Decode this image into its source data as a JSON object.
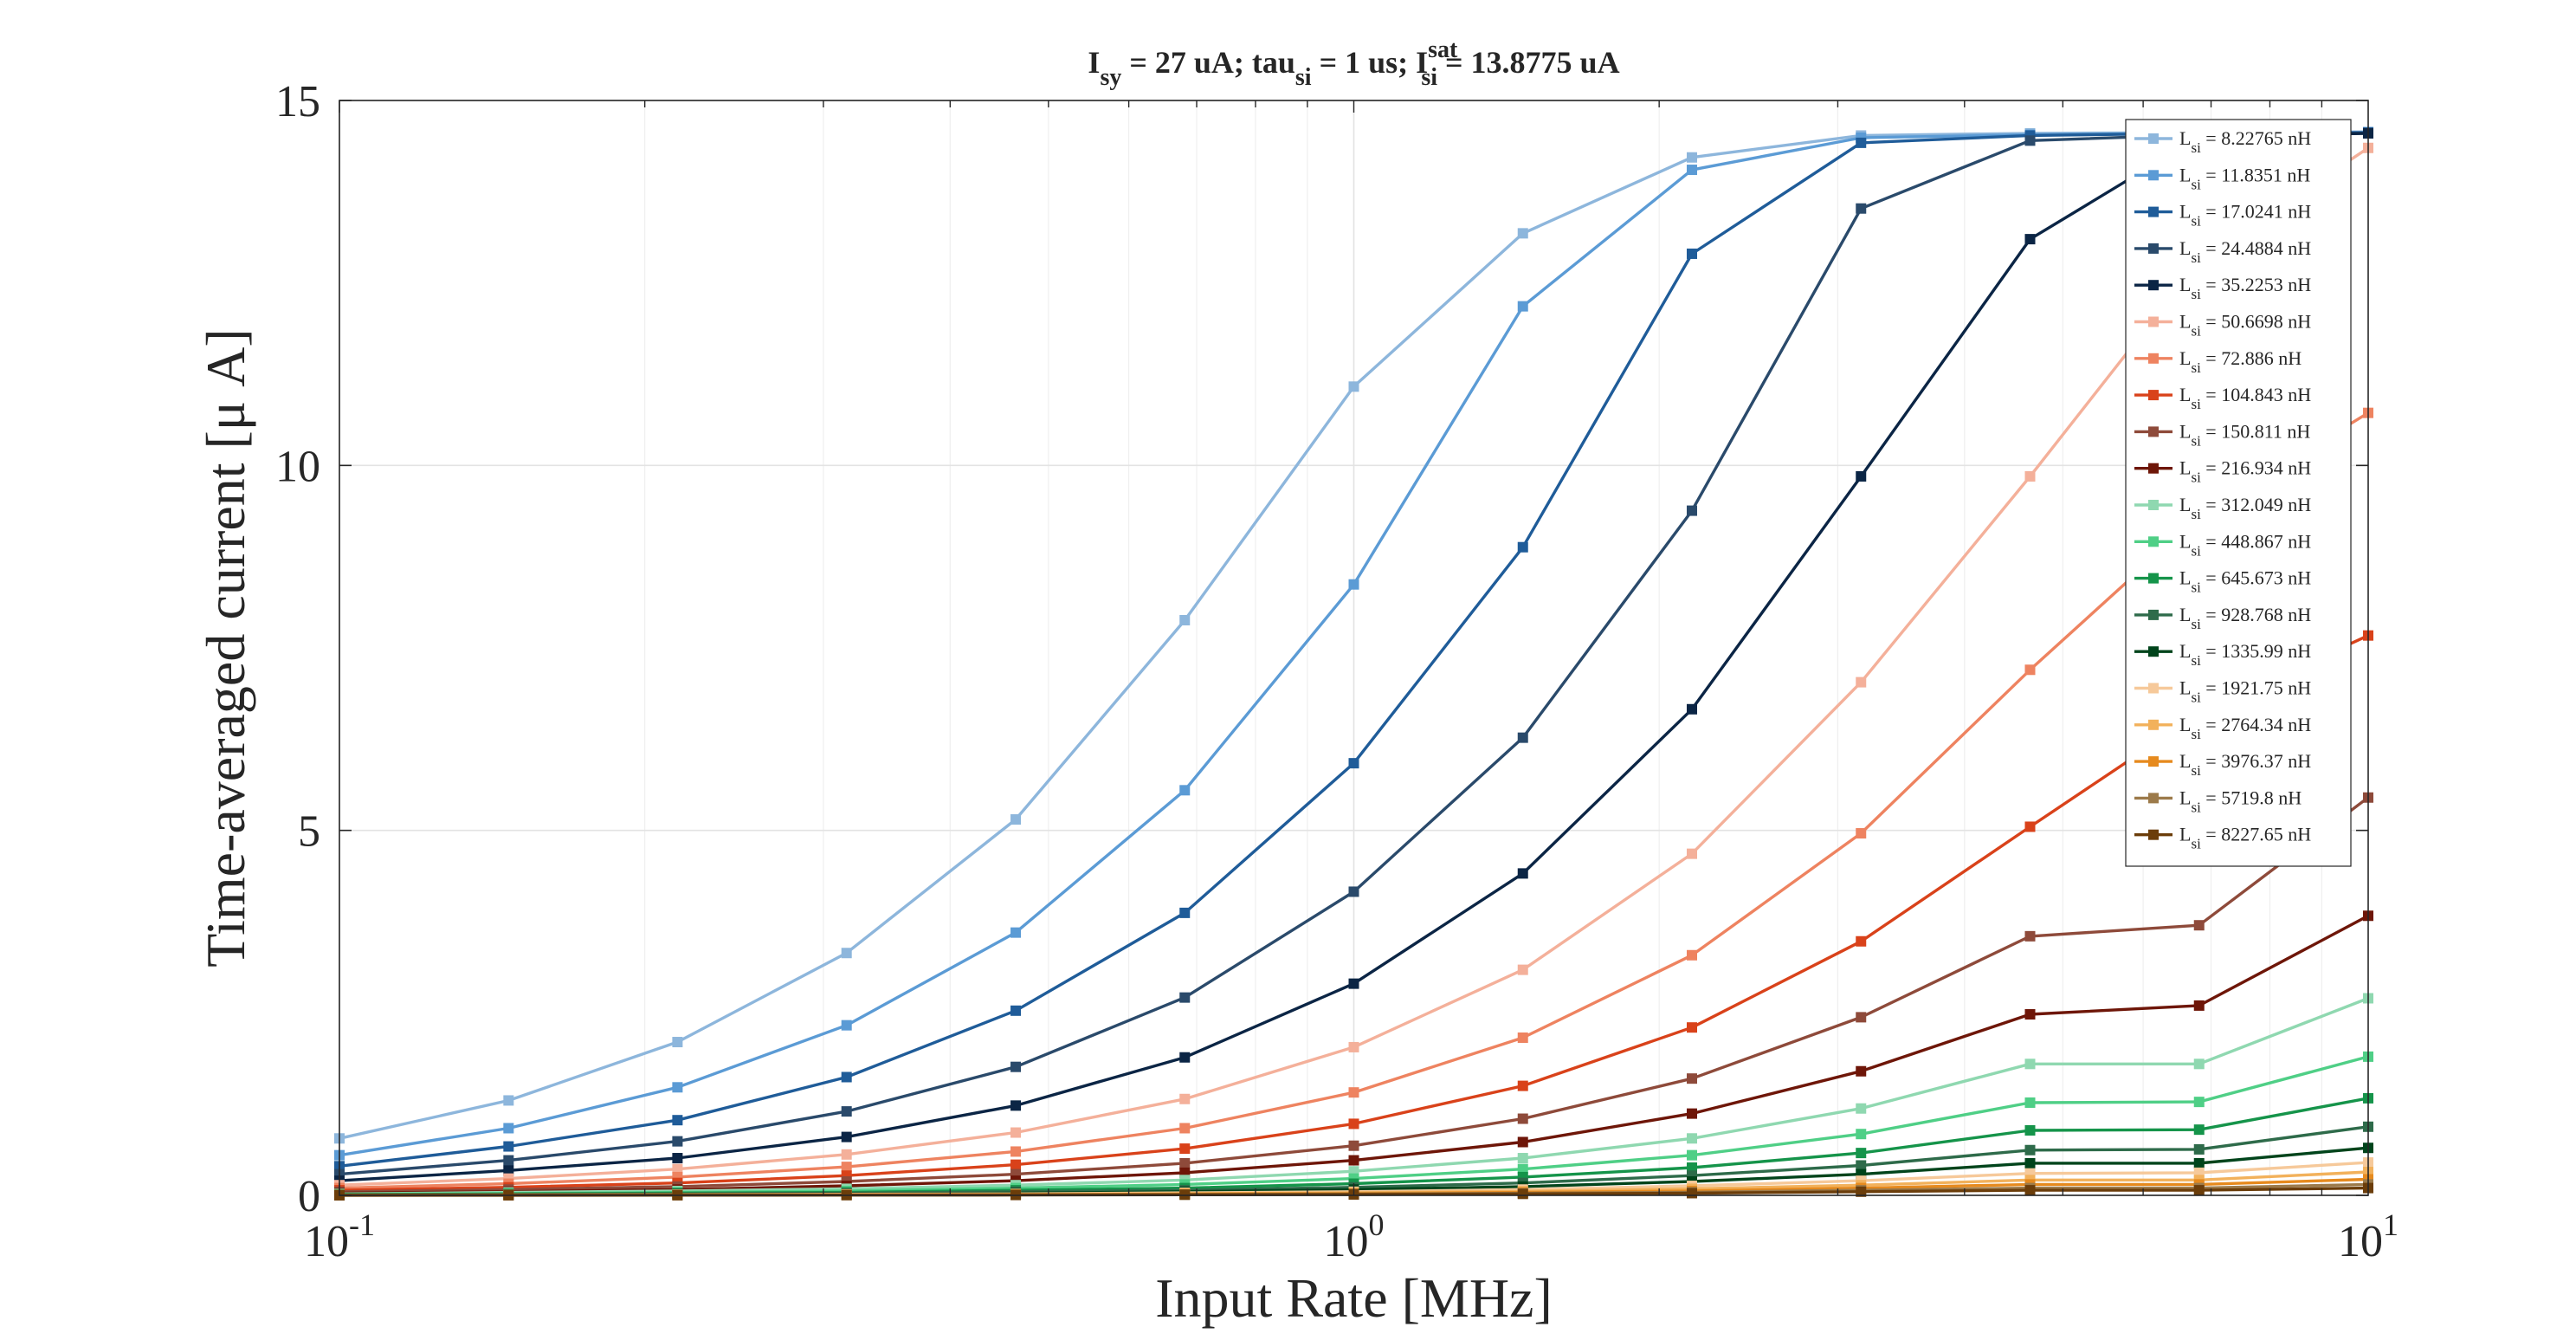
{
  "chart_data": {
    "type": "line",
    "title": {
      "parts": [
        {
          "text": "I",
          "style": "normal"
        },
        {
          "text": "sy",
          "style": "sub"
        },
        {
          "text": " = 27 uA; tau",
          "style": "normal"
        },
        {
          "text": "si",
          "style": "sub"
        },
        {
          "text": " = 1 us; I",
          "style": "normal"
        },
        {
          "text": "sat",
          "style": "sup"
        },
        {
          "text": "si",
          "style": "subafter"
        },
        {
          "text": " = 13.8775 uA",
          "style": "normal"
        }
      ]
    },
    "xlabel": "Input Rate [MHz]",
    "ylabel": "Time-averaged current [μ A]",
    "x_scale": "log",
    "xlim": [
      0.1,
      10
    ],
    "ylim": [
      0,
      15
    ],
    "xticks": [
      {
        "value": 0.1,
        "base": "10",
        "exp": "-1"
      },
      {
        "value": 1,
        "base": "10",
        "exp": "0"
      },
      {
        "value": 10,
        "base": "10",
        "exp": "1"
      }
    ],
    "yticks": [
      0,
      5,
      10,
      15
    ],
    "grid": true,
    "legend_position": "top-right",
    "legend_prefix": "L",
    "legend_sub": "si",
    "x": [
      0.1,
      0.1468,
      0.2154,
      0.3162,
      0.4642,
      0.6813,
      1.0,
      1.4678,
      2.1544,
      3.1623,
      4.6416,
      6.8129,
      10.0
    ],
    "series": [
      {
        "name": " = 8.22765 nH",
        "color": "#8db6dc",
        "values": [
          0.78,
          1.3,
          2.1,
          3.32,
          5.15,
          7.88,
          11.08,
          13.18,
          14.22,
          14.52,
          14.55,
          14.56,
          14.57
        ]
      },
      {
        "name": " = 11.8351 nH",
        "color": "#5b9bd5",
        "values": [
          0.55,
          0.92,
          1.48,
          2.33,
          3.6,
          5.55,
          8.37,
          12.18,
          14.05,
          14.49,
          14.53,
          14.55,
          14.56
        ]
      },
      {
        "name": " = 17.0241 nH",
        "color": "#1f5c99",
        "values": [
          0.4,
          0.67,
          1.03,
          1.62,
          2.53,
          3.87,
          5.92,
          8.88,
          12.9,
          14.42,
          14.52,
          14.55,
          14.56
        ]
      },
      {
        "name": " = 24.4884 nH",
        "color": "#2a4a6b",
        "values": [
          0.29,
          0.48,
          0.74,
          1.15,
          1.76,
          2.71,
          4.16,
          6.27,
          9.38,
          13.52,
          14.45,
          14.53,
          14.55
        ]
      },
      {
        "name": " = 35.2253 nH",
        "color": "#0b2545",
        "values": [
          0.2,
          0.34,
          0.51,
          0.8,
          1.23,
          1.89,
          2.9,
          4.41,
          6.66,
          9.85,
          13.1,
          14.5,
          14.55
        ]
      },
      {
        "name": " = 50.6698 nH",
        "color": "#f4b09a",
        "values": [
          0.14,
          0.23,
          0.36,
          0.56,
          0.86,
          1.32,
          2.03,
          3.09,
          4.68,
          7.03,
          9.85,
          12.8,
          14.35
        ]
      },
      {
        "name": " = 72.886 nH",
        "color": "#ee8360",
        "values": [
          0.1,
          0.16,
          0.25,
          0.39,
          0.6,
          0.92,
          1.41,
          2.16,
          3.29,
          4.96,
          7.2,
          9.3,
          10.72
        ]
      },
      {
        "name": " = 104.843 nH",
        "color": "#d9421a",
        "values": [
          0.07,
          0.11,
          0.17,
          0.27,
          0.42,
          0.64,
          0.98,
          1.5,
          2.3,
          3.48,
          5.05,
          6.6,
          7.67
        ]
      },
      {
        "name": " = 150.811 nH",
        "color": "#8e4a3a",
        "values": [
          0.05,
          0.08,
          0.12,
          0.19,
          0.29,
          0.44,
          0.68,
          1.05,
          1.6,
          2.44,
          3.55,
          3.7,
          5.45
        ]
      },
      {
        "name": " = 216.934 nH",
        "color": "#6e1608",
        "values": [
          0.03,
          0.05,
          0.08,
          0.13,
          0.2,
          0.31,
          0.48,
          0.73,
          1.12,
          1.7,
          2.48,
          2.6,
          3.83
        ]
      },
      {
        "name": " = 312.049 nH",
        "color": "#8fd8b0",
        "values": [
          0.02,
          0.04,
          0.06,
          0.09,
          0.14,
          0.21,
          0.33,
          0.51,
          0.78,
          1.19,
          1.8,
          1.8,
          2.7
        ]
      },
      {
        "name": " = 448.867 nH",
        "color": "#4fcf86",
        "values": [
          0.015,
          0.025,
          0.04,
          0.06,
          0.1,
          0.15,
          0.23,
          0.36,
          0.55,
          0.84,
          1.27,
          1.28,
          1.9
        ]
      },
      {
        "name": " = 645.673 nH",
        "color": "#15944a",
        "values": [
          0.01,
          0.02,
          0.03,
          0.04,
          0.07,
          0.1,
          0.16,
          0.25,
          0.38,
          0.58,
          0.89,
          0.9,
          1.33
        ]
      },
      {
        "name": " = 928.768 nH",
        "color": "#2e6b4a",
        "values": [
          0.008,
          0.013,
          0.02,
          0.03,
          0.05,
          0.07,
          0.11,
          0.17,
          0.27,
          0.41,
          0.62,
          0.63,
          0.94
        ]
      },
      {
        "name": " = 1335.99 nH",
        "color": "#00441b",
        "values": [
          0.005,
          0.009,
          0.014,
          0.02,
          0.03,
          0.05,
          0.08,
          0.12,
          0.19,
          0.29,
          0.44,
          0.44,
          0.65
        ]
      },
      {
        "name": " = 1921.75 nH",
        "color": "#f6c99a",
        "values": [
          0.004,
          0.006,
          0.01,
          0.015,
          0.02,
          0.035,
          0.05,
          0.08,
          0.13,
          0.2,
          0.3,
          0.31,
          0.45
        ]
      },
      {
        "name": " = 2764.34 nH",
        "color": "#f2b15b",
        "values": [
          0.003,
          0.004,
          0.007,
          0.01,
          0.015,
          0.024,
          0.036,
          0.056,
          0.09,
          0.14,
          0.21,
          0.21,
          0.32
        ]
      },
      {
        "name": " = 3976.37 nH",
        "color": "#e68a1e",
        "values": [
          0.002,
          0.003,
          0.005,
          0.007,
          0.01,
          0.017,
          0.025,
          0.04,
          0.06,
          0.1,
          0.15,
          0.15,
          0.22
        ]
      },
      {
        "name": " = 5719.8 nH",
        "color": "#9c7a4a",
        "values": [
          0.001,
          0.002,
          0.003,
          0.005,
          0.007,
          0.012,
          0.018,
          0.028,
          0.043,
          0.07,
          0.1,
          0.1,
          0.15
        ]
      },
      {
        "name": " = 8227.65 nH",
        "color": "#6b3d0a",
        "values": [
          0.001,
          0.0015,
          0.002,
          0.003,
          0.005,
          0.008,
          0.012,
          0.02,
          0.03,
          0.05,
          0.07,
          0.07,
          0.1
        ]
      }
    ]
  }
}
